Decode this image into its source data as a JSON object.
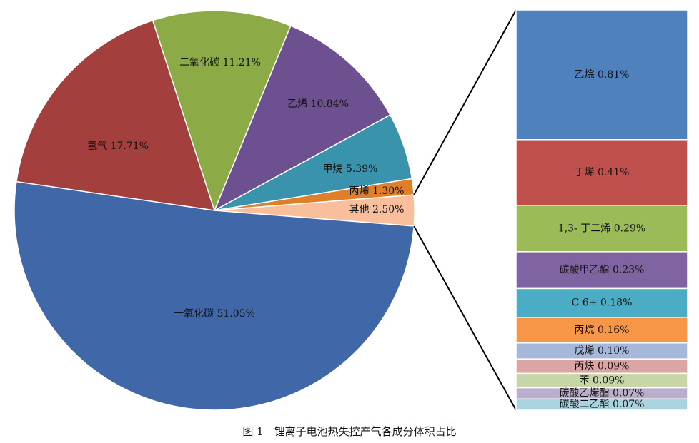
{
  "chart_data": {
    "type": "pie-of-bar",
    "title": "图 1　锂离子电池热失控产气各成分体积占比",
    "categories": [
      "其他",
      "丙烯",
      "甲烷",
      "乙烯",
      "二氧化碳",
      "氢气",
      "一氧化碳"
    ],
    "values": [
      2.5,
      1.3,
      5.39,
      10.84,
      11.21,
      17.71,
      51.05
    ],
    "value_labels": [
      "2.50%",
      "1.30%",
      "5.39%",
      "10.84%",
      "11.21%",
      "17.71%",
      "51.05%"
    ],
    "colors": [
      "#f9bf9c",
      "#e07f2a",
      "#3a93ad",
      "#6d5090",
      "#8caa45",
      "#a33f3c",
      "#4068a8"
    ],
    "breakdown": {
      "categories": [
        "乙烷",
        "丁烯",
        "1,3- 丁二烯",
        "碳酸甲乙酯",
        "C 6+",
        "丙烷",
        "戊烯",
        "丙炔",
        "苯",
        "碳酸乙烯酯",
        "碳酸二乙酯"
      ],
      "values": [
        0.81,
        0.41,
        0.29,
        0.23,
        0.18,
        0.16,
        0.1,
        0.09,
        0.09,
        0.07,
        0.07
      ],
      "value_labels": [
        "0.81%",
        "0.41%",
        "0.29%",
        "0.23%",
        "0.18%",
        "0.16%",
        "0.10%",
        "0.09%",
        "0.09%",
        "0.07%",
        "0.07%"
      ],
      "colors": [
        "#4f81bd",
        "#c0504d",
        "#9bbb59",
        "#8064a2",
        "#4bacc6",
        "#f79646",
        "#a5b8d9",
        "#dba5a4",
        "#c6d6a7",
        "#bbaecd",
        "#a8d4e0"
      ]
    }
  }
}
